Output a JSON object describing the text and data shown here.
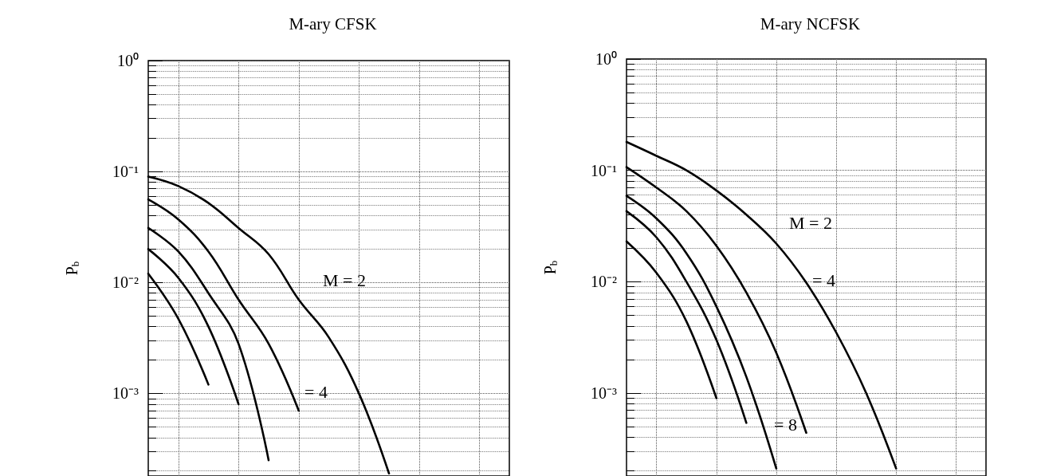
{
  "chart_data": [
    {
      "type": "line",
      "title": "M-ary CFSK",
      "ylabel": "P$_{b}$",
      "categories": [
        null,
        null,
        null,
        null,
        null,
        null,
        null,
        null,
        null,
        null,
        null,
        null,
        null
      ],
      "log": "y",
      "ylim": [
        0.00018,
        1
      ],
      "yticks": [
        {
          "value": 1,
          "label": "10⁰"
        },
        {
          "value": 0.1,
          "label": "10⁻¹"
        },
        {
          "value": 0.01,
          "label": "10⁻²"
        },
        {
          "value": 0.001,
          "label": "10⁻³"
        }
      ],
      "grid": true,
      "marker": "none",
      "line_style": "solid",
      "tick_labels": "y",
      "annotations": [
        "M = 2",
        "= 4"
      ],
      "series": [
        {
          "color": "#000000",
          "values": [
            0.09,
            0.074,
            0.052,
            0.031,
            0.018,
            0.007,
            0.0032,
            0.001,
            0.00019,
            null,
            null,
            null,
            null
          ]
        },
        {
          "color": "#000000",
          "values": [
            0.056,
            0.037,
            0.019,
            0.007,
            0.0028,
            0.0007,
            null,
            null,
            null,
            null,
            null,
            null,
            null
          ]
        },
        {
          "color": "#000000",
          "values": [
            0.031,
            0.019,
            0.008,
            0.0028,
            0.00025,
            null,
            null,
            null,
            null,
            null,
            null,
            null,
            null
          ]
        },
        {
          "color": "#000000",
          "values": [
            0.02,
            0.011,
            0.004,
            0.0008,
            null,
            null,
            null,
            null,
            null,
            null,
            null,
            null,
            null
          ]
        },
        {
          "color": "#000000",
          "values": [
            0.012,
            0.0047,
            0.0012,
            null,
            null,
            null,
            null,
            null,
            null,
            null,
            null,
            null,
            null
          ]
        }
      ]
    },
    {
      "type": "line",
      "title": "M-ary NCFSK",
      "ylabel": "P$_{b}$",
      "categories": [
        null,
        null,
        null,
        null,
        null,
        null,
        null,
        null,
        null,
        null,
        null,
        null,
        null
      ],
      "log": "y",
      "ylim": [
        0.00018,
        1
      ],
      "yticks": [
        {
          "value": 1,
          "label": "10⁰"
        },
        {
          "value": 0.1,
          "label": "10⁻¹"
        },
        {
          "value": 0.01,
          "label": "10⁻²"
        },
        {
          "value": 0.001,
          "label": "10⁻³"
        }
      ],
      "grid": true,
      "marker": "none",
      "line_style": "solid",
      "tick_labels": "y",
      "annotations": [
        "M = 2",
        "= 4",
        "= 8"
      ],
      "series": [
        {
          "color": "#000000",
          "values": [
            0.18,
            0.135,
            0.1,
            0.066,
            0.04,
            0.022,
            0.0098,
            0.0035,
            0.001,
            0.00021,
            null,
            null,
            null
          ]
        },
        {
          "color": "#000000",
          "values": [
            0.107,
            0.07,
            0.043,
            0.021,
            0.008,
            0.0023,
            0.00044,
            null,
            null,
            null,
            null,
            null,
            null
          ]
        },
        {
          "color": "#000000",
          "values": [
            0.059,
            0.037,
            0.018,
            0.006,
            0.0014,
            0.00021,
            null,
            null,
            null,
            null,
            null,
            null,
            null
          ]
        },
        {
          "color": "#000000",
          "values": [
            0.043,
            0.025,
            0.01,
            0.003,
            0.00054,
            null,
            null,
            null,
            null,
            null,
            null,
            null,
            null
          ]
        },
        {
          "color": "#000000",
          "values": [
            0.023,
            0.012,
            0.0044,
            0.0009,
            null,
            null,
            null,
            null,
            null,
            null,
            null,
            null,
            null
          ]
        }
      ]
    }
  ]
}
